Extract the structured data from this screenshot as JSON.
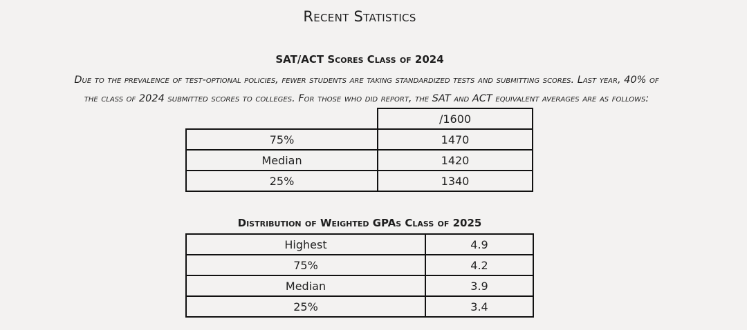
{
  "page_title": "Recent Statistics",
  "sat_section": {
    "title": "SAT/ACT Scores Class of 2024",
    "intro_line1": "Due to the prevalence of test-optional policies, fewer students are taking standardized tests and submitting scores. Last year, 40% of",
    "intro_line2": "the class of 2024 submitted scores to colleges. For those who did report, the SAT and ACT equivalent averages are as follows:",
    "column_header": "/1600",
    "rows": [
      {
        "label": "75%",
        "value": "1470"
      },
      {
        "label": "Median",
        "value": "1420"
      },
      {
        "label": "25%",
        "value": "1340"
      }
    ]
  },
  "gpa_section": {
    "title": "Distribution of Weighted GPAs Class of 2025",
    "rows": [
      {
        "label": "Highest",
        "value": "4.9"
      },
      {
        "label": "75%",
        "value": "4.2"
      },
      {
        "label": "Median",
        "value": "3.9"
      },
      {
        "label": "25%",
        "value": "3.4"
      }
    ]
  }
}
